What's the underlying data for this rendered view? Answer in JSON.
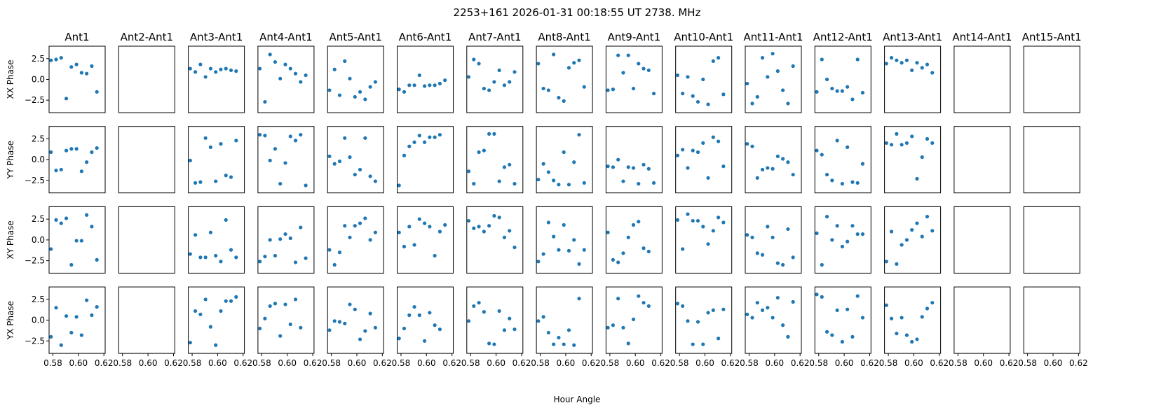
{
  "figure": {
    "suptitle": "2253+161  2026-01-31 00:18:55 UT  2738. MHz",
    "xlabel": "Hour Angle",
    "marker_color": "#1f77b4"
  },
  "chart_data": {
    "type": "scatter",
    "columns": [
      "Ant1",
      "Ant2-Ant1",
      "Ant3-Ant1",
      "Ant4-Ant1",
      "Ant5-Ant1",
      "Ant6-Ant1",
      "Ant7-Ant1",
      "Ant8-Ant1",
      "Ant9-Ant1",
      "Ant10-Ant1",
      "Ant11-Ant1",
      "Ant12-Ant1",
      "Ant13-Ant1",
      "Ant14-Ant1",
      "Ant15-Ant1"
    ],
    "rows": [
      "XX Phase",
      "YY Phase",
      "XY Phase",
      "YX Phase"
    ],
    "xlim": [
      0.577,
      0.621
    ],
    "ylim": [
      -4.0,
      4.0
    ],
    "xticks": [
      0.58,
      0.6,
      0.62
    ],
    "xtick_labels": [
      "0.58",
      "0.60",
      "0.62"
    ],
    "yticks": [
      2.5,
      0.0,
      -2.5
    ],
    "ytick_labels": [
      "2.5",
      "0.0",
      "−2.5"
    ],
    "x": [
      0.5785,
      0.5825,
      0.5865,
      0.5905,
      0.5945,
      0.5985,
      0.6025,
      0.6065,
      0.6105,
      0.6145,
      0.6185
    ],
    "y": [
      [
        [
          2.3,
          2.4,
          2.6,
          -2.3,
          1.5,
          1.8,
          0.8,
          0.7,
          1.6,
          -1.5,
          null
        ],
        [],
        [
          1.3,
          0.9,
          1.8,
          0.3,
          1.3,
          0.9,
          1.2,
          1.3,
          1.1,
          1.0,
          null
        ],
        [
          1.3,
          -2.7,
          3.0,
          2.1,
          0.1,
          1.8,
          1.3,
          0.7,
          -0.3,
          0.5,
          null
        ],
        [
          -1.3,
          1.2,
          -1.9,
          2.2,
          0.1,
          -2.1,
          -1.5,
          -2.4,
          -0.9,
          -0.3,
          null
        ],
        [
          -1.2,
          -1.5,
          -0.7,
          -0.7,
          0.5,
          -0.8,
          -0.7,
          -0.7,
          -0.5,
          -0.1,
          null
        ],
        [
          0.3,
          2.4,
          1.9,
          -1.1,
          -1.3,
          -0.3,
          1.1,
          -0.7,
          -0.3,
          0.9,
          null
        ],
        [
          1.9,
          -1.1,
          -1.3,
          3.0,
          -2.2,
          -2.6,
          1.4,
          2.0,
          2.3,
          -0.9,
          null
        ],
        [
          -1.3,
          -1.2,
          2.9,
          0.8,
          2.9,
          -1.1,
          1.9,
          1.3,
          1.1,
          -1.7,
          null
        ],
        [
          0.5,
          -1.7,
          0.3,
          -2.0,
          -2.7,
          0.0,
          -3.0,
          2.2,
          2.6,
          -1.8,
          null
        ],
        [
          -0.5,
          -2.9,
          -2.1,
          2.6,
          0.3,
          3.1,
          1.0,
          -1.3,
          -2.9,
          1.6,
          null
        ],
        [
          -1.5,
          2.4,
          -0.0,
          -1.1,
          -1.4,
          -1.4,
          -0.9,
          -2.4,
          2.4,
          -1.6,
          null
        ],
        [
          1.9,
          2.6,
          2.3,
          2.0,
          2.3,
          1.1,
          2.0,
          1.4,
          1.8,
          0.8,
          null
        ],
        [],
        []
      ],
      [
        [
          0.9,
          -1.3,
          -1.2,
          1.1,
          1.3,
          1.3,
          -1.4,
          -0.3,
          0.9,
          1.4,
          null
        ],
        [],
        [
          -0.1,
          -2.8,
          -2.7,
          2.6,
          1.5,
          -2.6,
          1.9,
          -1.9,
          -2.1,
          2.3,
          null
        ],
        [
          3.0,
          2.9,
          -0.1,
          1.3,
          -2.9,
          -0.4,
          2.8,
          2.3,
          3.0,
          -3.1,
          null
        ],
        [
          0.4,
          -0.5,
          -0.2,
          2.6,
          0.3,
          -1.8,
          -1.2,
          2.6,
          -2.0,
          -2.6,
          null
        ],
        [
          -3.1,
          0.5,
          1.6,
          2.1,
          2.9,
          2.1,
          2.7,
          2.7,
          3.0,
          null,
          null
        ],
        [
          -1.4,
          -2.9,
          0.9,
          1.1,
          3.1,
          3.1,
          -2.6,
          -0.9,
          -0.6,
          -2.9,
          null
        ],
        [
          -2.4,
          -0.5,
          -1.5,
          -2.5,
          -3.0,
          0.9,
          -3.0,
          -0.3,
          3.0,
          -2.8,
          null
        ],
        [
          -0.8,
          -0.9,
          -0.0,
          -2.6,
          -0.9,
          -1.0,
          -2.9,
          -0.6,
          -1.1,
          -2.8,
          null
        ],
        [
          0.5,
          1.2,
          -1.0,
          1.1,
          0.9,
          2.0,
          -2.2,
          2.7,
          2.2,
          -0.8,
          null
        ],
        [
          1.9,
          1.6,
          -2.2,
          -1.2,
          -1.0,
          -1.1,
          0.4,
          0.1,
          -0.3,
          -1.8,
          null
        ],
        [
          1.1,
          0.6,
          -1.8,
          -2.5,
          2.3,
          -2.9,
          1.5,
          -2.7,
          -2.8,
          -0.5,
          null
        ],
        [
          2.0,
          1.8,
          3.1,
          1.8,
          2.0,
          2.8,
          -2.3,
          0.3,
          2.5,
          2.0,
          null
        ],
        [],
        []
      ],
      [
        [
          -1.1,
          2.4,
          2.0,
          2.6,
          -3.0,
          -0.1,
          -0.1,
          3.0,
          1.6,
          -2.4,
          null
        ],
        [],
        [
          -1.7,
          0.6,
          -2.1,
          -2.1,
          0.9,
          -1.9,
          -2.6,
          2.4,
          -1.2,
          -2.1,
          null
        ],
        [
          -2.6,
          -2.0,
          -0.0,
          -1.9,
          0.1,
          0.7,
          0.2,
          -2.7,
          1.5,
          -2.2,
          null
        ],
        [
          -1.2,
          -3.0,
          -1.5,
          1.7,
          0.3,
          1.7,
          2.0,
          2.6,
          -0.0,
          0.9,
          null
        ],
        [
          0.9,
          -0.8,
          1.6,
          -0.6,
          2.5,
          2.0,
          1.6,
          -1.9,
          1.0,
          1.8,
          null
        ],
        [
          2.3,
          1.4,
          1.6,
          1.0,
          1.7,
          2.9,
          2.7,
          0.3,
          1.1,
          -0.9,
          null
        ],
        [
          -2.6,
          -1.7,
          2.1,
          0.4,
          -1.2,
          1.8,
          -1.3,
          -0.0,
          -2.9,
          -1.2,
          null
        ],
        [
          0.9,
          -2.4,
          -2.7,
          -1.6,
          0.3,
          1.8,
          2.2,
          -1.0,
          -1.4,
          null,
          null
        ],
        [
          2.4,
          -1.1,
          3.1,
          2.3,
          2.3,
          1.6,
          -0.5,
          1.1,
          2.7,
          2.1,
          null
        ],
        [
          0.6,
          0.3,
          -1.6,
          -1.8,
          1.6,
          0.3,
          -2.8,
          -3.0,
          1.3,
          -2.1,
          null
        ],
        [
          0.8,
          -3.0,
          2.8,
          -0.0,
          1.7,
          -0.8,
          -0.2,
          1.7,
          0.7,
          0.7,
          null
        ],
        [
          -2.6,
          1.0,
          -2.9,
          -0.6,
          0.0,
          1.2,
          2.0,
          0.4,
          2.8,
          1.1,
          null
        ],
        [],
        []
      ],
      [
        [
          -2.0,
          1.5,
          -3.0,
          0.5,
          -1.5,
          0.4,
          -1.8,
          2.4,
          0.6,
          1.6,
          null
        ],
        [],
        [
          -2.7,
          1.1,
          0.7,
          2.5,
          -0.8,
          -3.0,
          1.1,
          2.3,
          2.3,
          2.8,
          null
        ],
        [
          -1.0,
          0.2,
          1.7,
          2.0,
          -1.9,
          1.9,
          -0.5,
          2.5,
          -0.9,
          null,
          null
        ],
        [
          -1.2,
          -0.1,
          -0.2,
          -0.4,
          1.9,
          1.3,
          -2.3,
          -1.3,
          0.8,
          -0.9,
          null
        ],
        [
          -2.2,
          -1.0,
          0.6,
          1.6,
          0.6,
          -2.5,
          0.9,
          -0.6,
          -1.1,
          null,
          null
        ],
        [
          -0.1,
          1.7,
          2.1,
          1.0,
          -2.8,
          -2.9,
          1.1,
          -1.2,
          0.2,
          -1.1,
          null
        ],
        [
          -0.1,
          0.4,
          -1.5,
          -2.9,
          -2.1,
          -2.9,
          -1.2,
          -3.0,
          2.6,
          null,
          null
        ],
        [
          -0.9,
          -0.6,
          2.6,
          -0.9,
          -2.8,
          0.1,
          2.9,
          2.1,
          1.7,
          null,
          null
        ],
        [
          2.0,
          1.7,
          -0.1,
          -2.9,
          -0.2,
          -2.9,
          0.9,
          1.2,
          -2.2,
          1.3,
          null
        ],
        [
          0.7,
          0.3,
          2.1,
          1.2,
          1.5,
          0.3,
          2.7,
          -0.6,
          -2.0,
          2.2,
          null
        ],
        [
          3.1,
          2.8,
          -1.4,
          -1.8,
          1.2,
          -2.6,
          1.3,
          -2.0,
          2.9,
          0.3,
          null
        ],
        [
          1.8,
          0.2,
          -1.6,
          0.3,
          -1.8,
          -2.6,
          -2.3,
          0.4,
          1.4,
          2.1,
          null
        ],
        [],
        []
      ]
    ]
  }
}
